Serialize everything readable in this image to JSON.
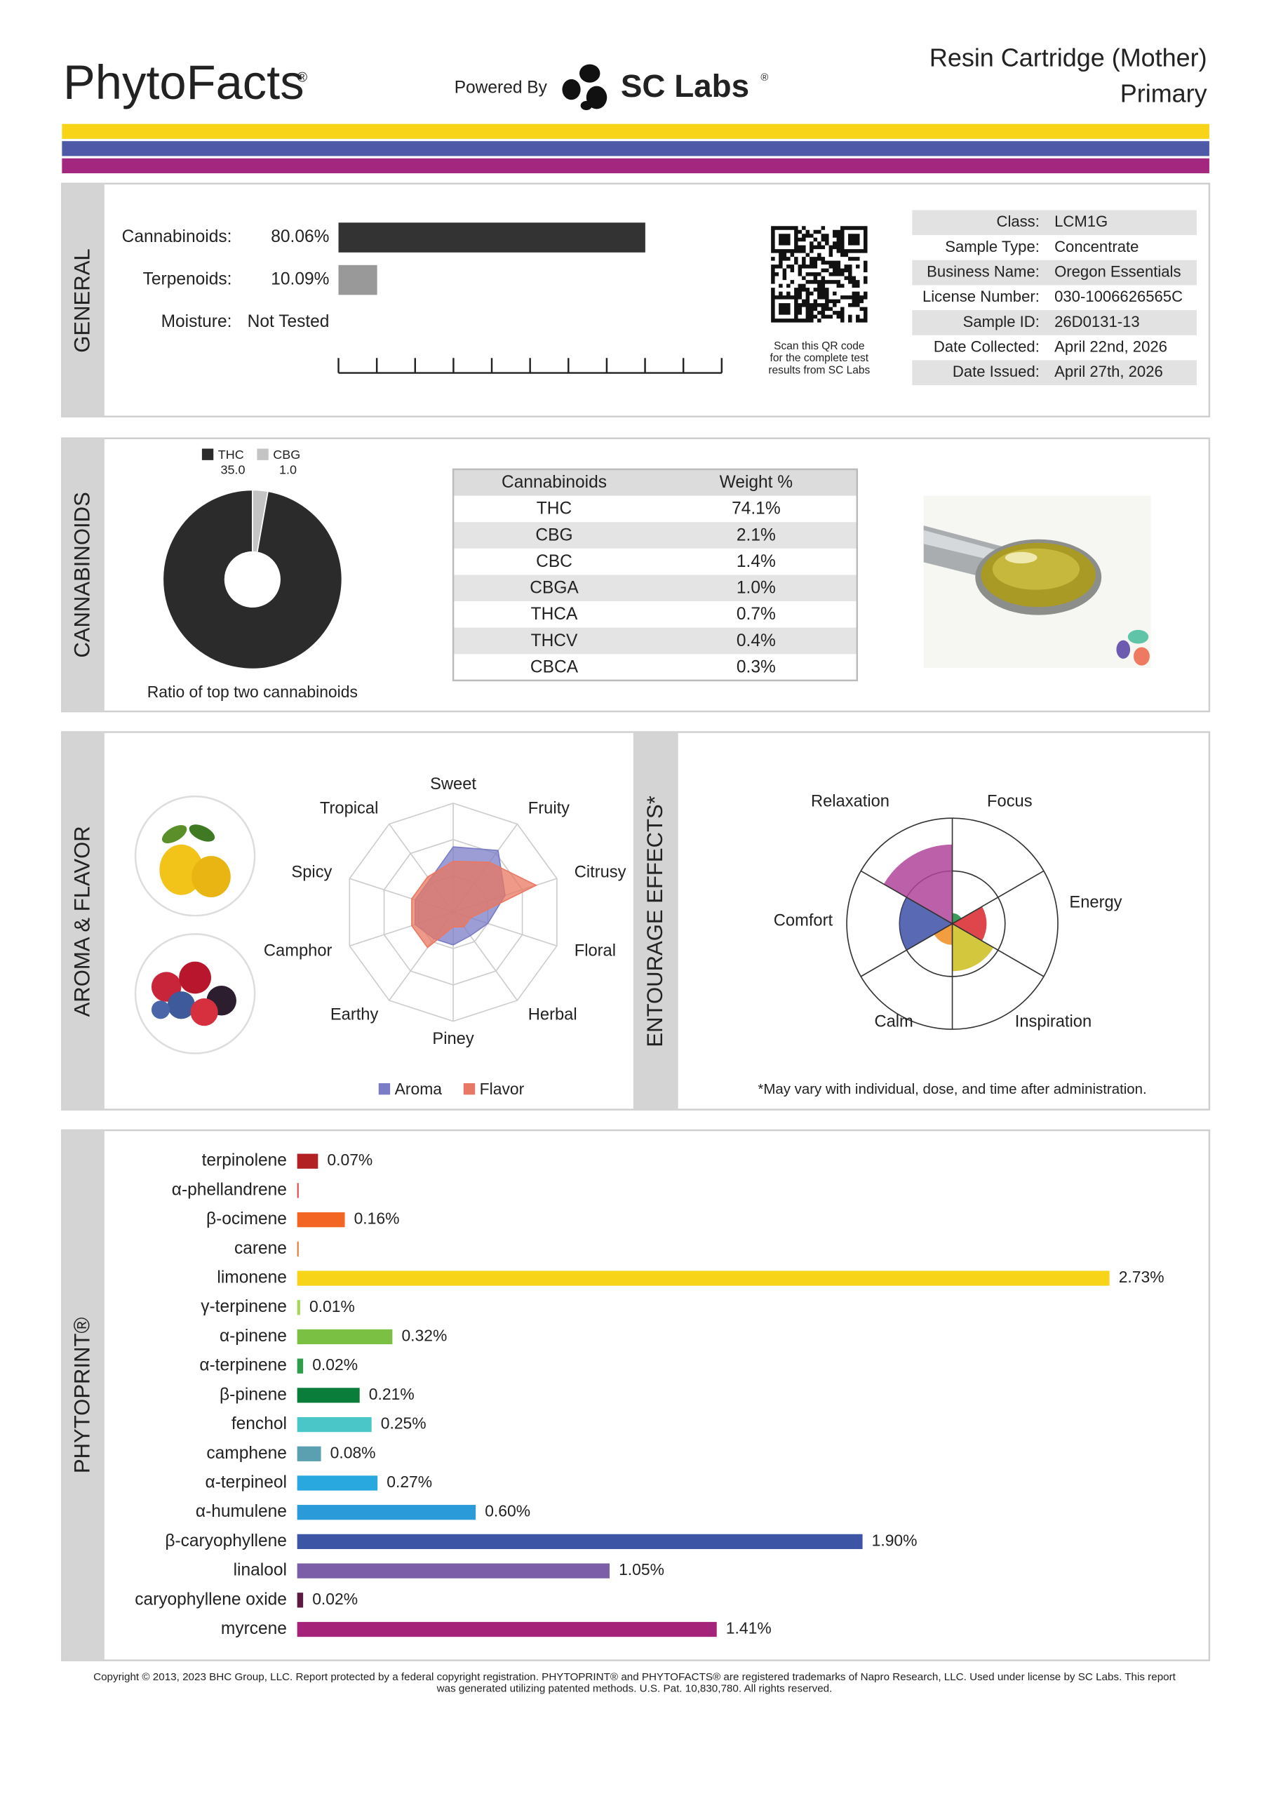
{
  "header": {
    "brand": "PhytoFacts",
    "brand_mark": "®",
    "powered_by": "Powered By",
    "lab": "SC Labs",
    "lab_mark": "®",
    "product": "Resin Cartridge (Mother)",
    "subtitle": "Primary"
  },
  "general": {
    "label": "GENERAL",
    "bars": {
      "type": "bar",
      "categories": [
        "Cannabinoids:",
        "Terpenoids:",
        "Moisture:"
      ],
      "values": [
        80.06,
        10.09,
        null
      ],
      "value_labels": [
        "80.06%",
        "10.09%",
        "Not Tested"
      ],
      "colors": [
        "#333333",
        "#999999",
        "#999999"
      ],
      "xlim": [
        0,
        100
      ],
      "xticks": [
        0,
        10,
        20,
        30,
        40,
        50,
        60,
        70,
        80,
        90,
        100
      ]
    },
    "qr_caption": [
      "Scan this QR code",
      "for the complete test",
      "results from SC Labs"
    ],
    "sample_info": {
      "rows": [
        [
          "Class:",
          "LCM1G"
        ],
        [
          "Sample Type:",
          "Concentrate"
        ],
        [
          "Business Name:",
          "Oregon Essentials"
        ],
        [
          "License Number:",
          "030-1006626565C"
        ],
        [
          "Sample ID:",
          "26D0131-13"
        ],
        [
          "Date Collected:",
          "April 22nd, 2026"
        ],
        [
          "Date Issued:",
          "April 27th, 2026"
        ]
      ]
    }
  },
  "cannabinoids": {
    "label": "CANNABINOIDS",
    "donut": {
      "type": "pie",
      "categories": [
        "THC",
        "CBG"
      ],
      "values": [
        35.0,
        1.0
      ],
      "value_labels": [
        "35.0",
        "1.0"
      ],
      "colors": [
        "#2b2b2b",
        "#c4c4c4"
      ],
      "caption": "Ratio of top two cannabinoids"
    },
    "table": {
      "header": [
        "Cannabinoids",
        "Weight %"
      ],
      "rows": [
        [
          "THC",
          "74.1%"
        ],
        [
          "CBG",
          "2.1%"
        ],
        [
          "CBC",
          "1.4%"
        ],
        [
          "CBGA",
          "1.0%"
        ],
        [
          "THCA",
          "0.7%"
        ],
        [
          "THCV",
          "0.4%"
        ],
        [
          "CBCA",
          "0.3%"
        ]
      ]
    }
  },
  "aroma_flavor": {
    "label": "AROMA & FLAVOR",
    "radar": {
      "type": "radar",
      "categories": [
        "Sweet",
        "Fruity",
        "Citrusy",
        "Floral",
        "Herbal",
        "Piney",
        "Earthy",
        "Camphor",
        "Spicy",
        "Tropical"
      ],
      "rlim": [
        0,
        3
      ],
      "rticks": [
        1,
        2,
        3
      ],
      "series": [
        {
          "name": "Aroma",
          "color": "#7a7cc6",
          "values": [
            1.8,
            2.1,
            1.5,
            1.0,
            0.8,
            0.9,
            0.9,
            1.1,
            1.1,
            1.1
          ]
        },
        {
          "name": "Flavor",
          "color": "#ea7762",
          "values": [
            1.4,
            1.7,
            2.4,
            0.5,
            0.5,
            0.4,
            1.2,
            1.2,
            1.2,
            1.2
          ]
        }
      ]
    }
  },
  "entourage": {
    "label": "ENTOURAGE EFFECTS*",
    "rose": {
      "type": "rose",
      "categories": [
        "Focus",
        "Energy",
        "Inspiration",
        "Calm",
        "Comfort",
        "Relaxation"
      ],
      "values": [
        0.4,
        1.3,
        1.8,
        0.8,
        2.0,
        3.0
      ],
      "colors": [
        "#1a8a3e",
        "#d9262c",
        "#cbbd1c",
        "#f08c1e",
        "#3d4fa6",
        "#b0449a"
      ],
      "rlim": [
        0,
        4
      ],
      "rticks": [
        2,
        4
      ]
    },
    "footnote": "*May vary with individual, dose, and time after administration."
  },
  "phytoprint": {
    "label": "PHYTOPRINT®",
    "bars": {
      "type": "bar",
      "categories": [
        "terpinolene",
        "α-phellandrene",
        "β-ocimene",
        "carene",
        "limonene",
        "γ-terpinene",
        "α-pinene",
        "α-terpinene",
        "β-pinene",
        "fenchol",
        "camphene",
        "α-terpineol",
        "α-humulene",
        "β-caryophyllene",
        "linalool",
        "caryophyllene oxide",
        "myrcene"
      ],
      "values": [
        0.07,
        0.005,
        0.16,
        0.005,
        2.73,
        0.01,
        0.32,
        0.02,
        0.21,
        0.25,
        0.08,
        0.27,
        0.6,
        1.9,
        1.05,
        0.02,
        1.41
      ],
      "value_labels": [
        "0.07%",
        null,
        "0.16%",
        null,
        "2.73%",
        "0.01%",
        "0.32%",
        "0.02%",
        "0.21%",
        "0.25%",
        "0.08%",
        "0.27%",
        "0.60%",
        "1.90%",
        "1.05%",
        "0.02%",
        "1.41%"
      ],
      "colors": [
        "#b22024",
        "#e0484d",
        "#f26522",
        "#e07b39",
        "#f7d417",
        "#a4d65e",
        "#7ac143",
        "#2e9e48",
        "#0a7d3b",
        "#4ac6c9",
        "#5aa0b0",
        "#29a8e0",
        "#2a9ad8",
        "#3d55a5",
        "#7b5ea7",
        "#5c1a40",
        "#a5247a"
      ],
      "label_colors": [
        "#b22024",
        "#d9262c",
        "#e0531a",
        "#c8742e",
        "#c9a800",
        "#6d8e2c",
        "#4f9a2a",
        "#1f8a3a",
        "#0a7d3b",
        "#2a9ea1",
        "#3d8494",
        "#1f8cc0",
        "#1f7fb8",
        "#3d55a5",
        "#6c52a0",
        "#5c1a40",
        "#a5247a"
      ]
    }
  },
  "footer": [
    "Copyright © 2013, 2023 BHC Group, LLC. Report protected by a federal copyright registration. PHYTOPRINT® and PHYTOFACTS® are registered trademarks of Napro Research, LLC. Used under license by SC Labs. This report",
    "was generated utilizing patented methods. U.S. Pat. 10,830,780. All rights reserved."
  ]
}
